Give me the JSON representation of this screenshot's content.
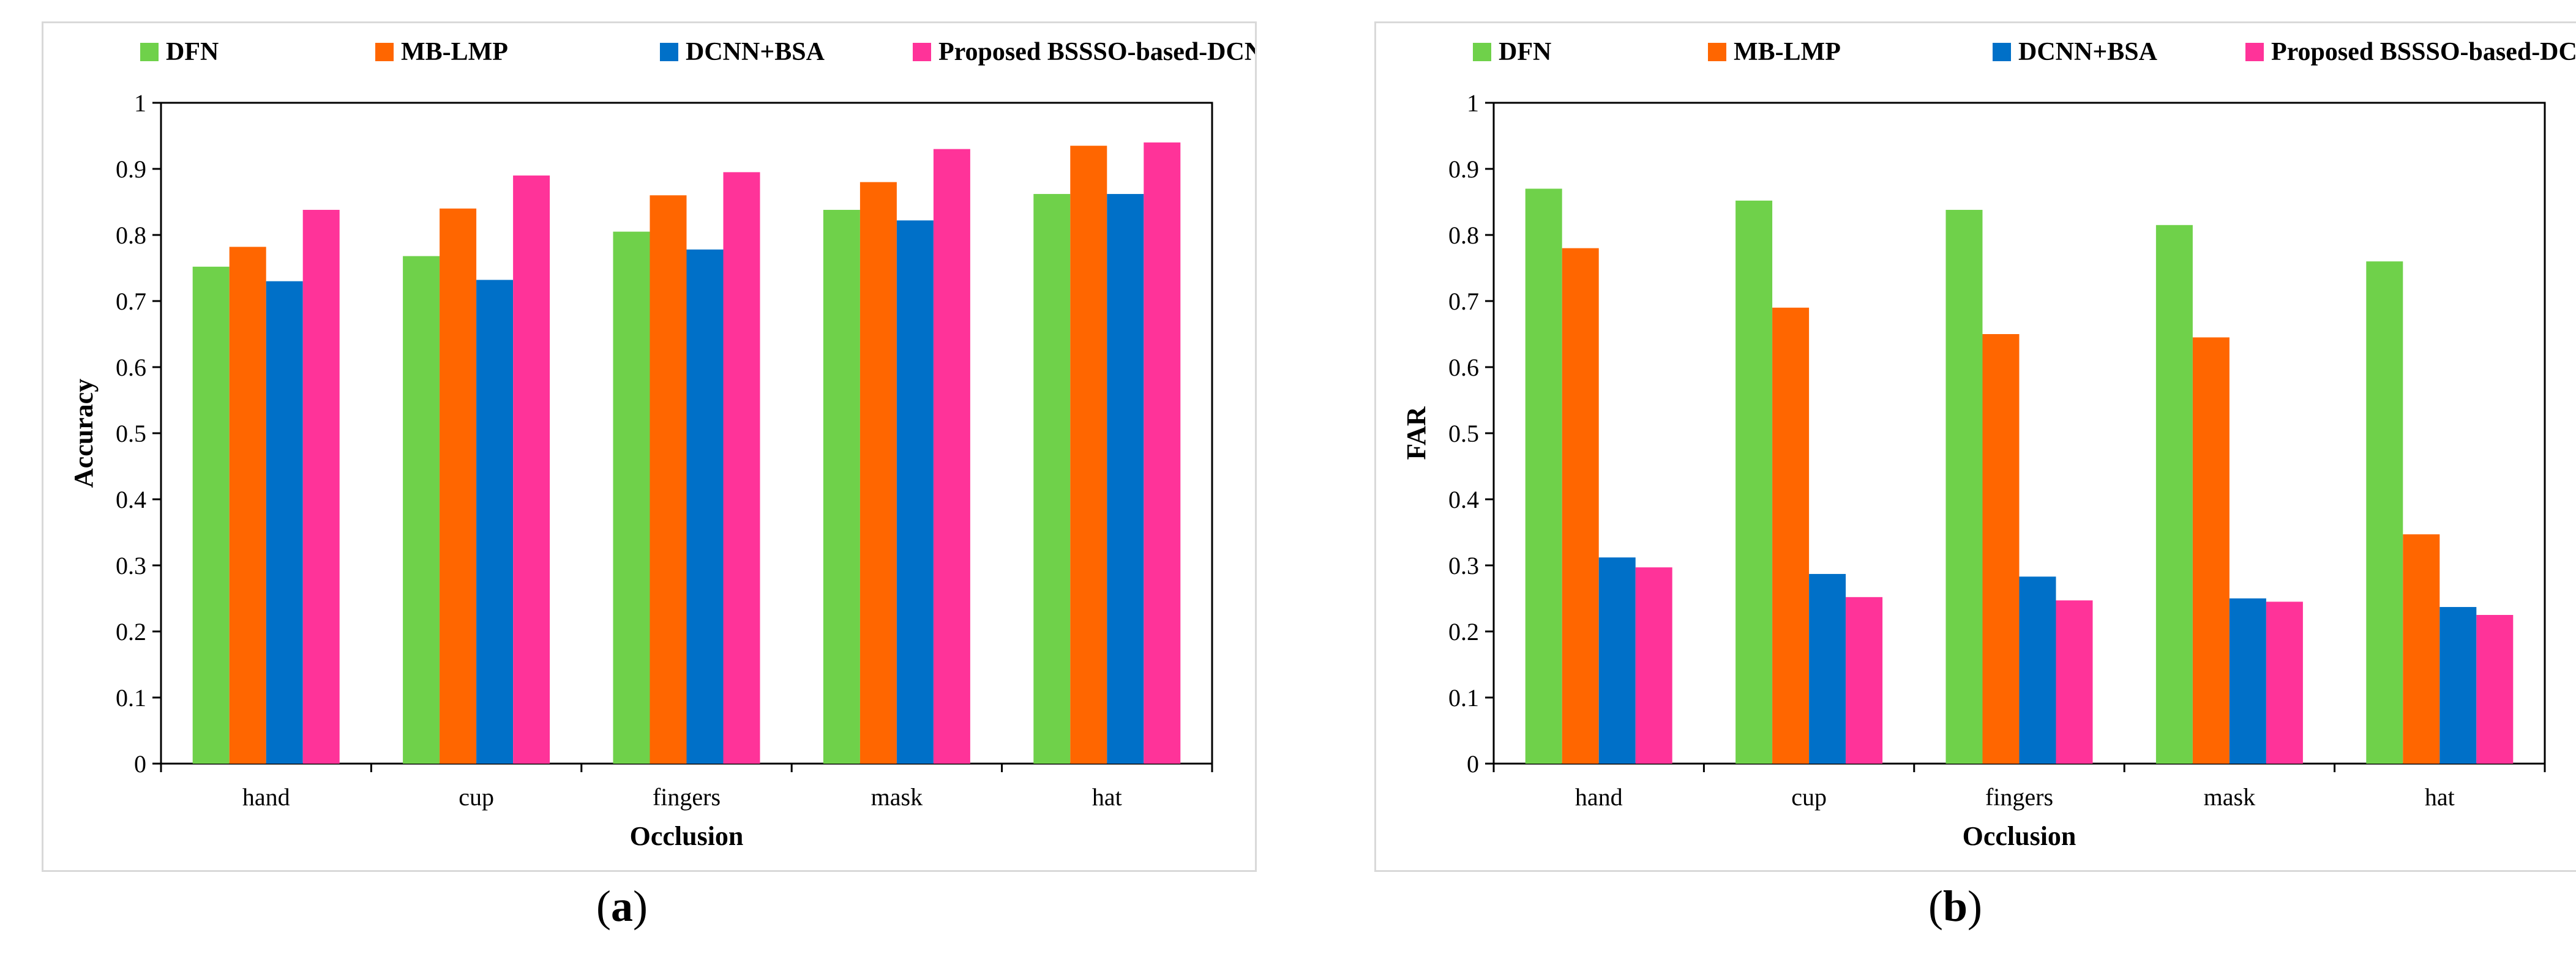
{
  "chart_data": [
    {
      "type": "bar",
      "panel": "(a)",
      "panel_letter": "a",
      "title": "",
      "xlabel": "Occlusion",
      "ylabel": "Accuracy",
      "ylim": [
        0,
        1
      ],
      "yticks": [
        "0",
        "0.1",
        "0.2",
        "0.3",
        "0.4",
        "0.5",
        "0.6",
        "0.7",
        "0.8",
        "0.9",
        "1"
      ],
      "categories": [
        "hand",
        "cup",
        "fingers",
        "mask",
        "hat"
      ],
      "legend_position": "top",
      "series": [
        {
          "name": "DFN",
          "color": "#6fd14a",
          "values": [
            0.752,
            0.768,
            0.805,
            0.838,
            0.862
          ]
        },
        {
          "name": "MB-LMP",
          "color": "#ff6600",
          "values": [
            0.782,
            0.84,
            0.86,
            0.88,
            0.935
          ]
        },
        {
          "name": "DCNN+BSA",
          "color": "#0070c8",
          "values": [
            0.73,
            0.732,
            0.778,
            0.822,
            0.862
          ]
        },
        {
          "name": "Proposed BSSSO-based-DCNN",
          "color": "#ff3399",
          "values": [
            0.838,
            0.89,
            0.895,
            0.93,
            0.94
          ]
        }
      ]
    },
    {
      "type": "bar",
      "panel": "(b)",
      "panel_letter": "b",
      "title": "",
      "xlabel": "Occlusion",
      "ylabel": "FAR",
      "ylim": [
        0,
        1
      ],
      "yticks": [
        "0",
        "0.1",
        "0.2",
        "0.3",
        "0.4",
        "0.5",
        "0.6",
        "0.7",
        "0.8",
        "0.9",
        "1"
      ],
      "categories": [
        "hand",
        "cup",
        "fingers",
        "mask",
        "hat"
      ],
      "legend_position": "top",
      "series": [
        {
          "name": "DFN",
          "color": "#6fd14a",
          "values": [
            0.87,
            0.852,
            0.838,
            0.815,
            0.76
          ]
        },
        {
          "name": "MB-LMP",
          "color": "#ff6600",
          "values": [
            0.78,
            0.69,
            0.65,
            0.645,
            0.347
          ]
        },
        {
          "name": "DCNN+BSA",
          "color": "#0070c8",
          "values": [
            0.312,
            0.287,
            0.283,
            0.25,
            0.237
          ]
        },
        {
          "name": "Proposed BSSSO-based-DCNN",
          "color": "#ff3399",
          "values": [
            0.297,
            0.252,
            0.247,
            0.245,
            0.225
          ]
        }
      ]
    }
  ]
}
